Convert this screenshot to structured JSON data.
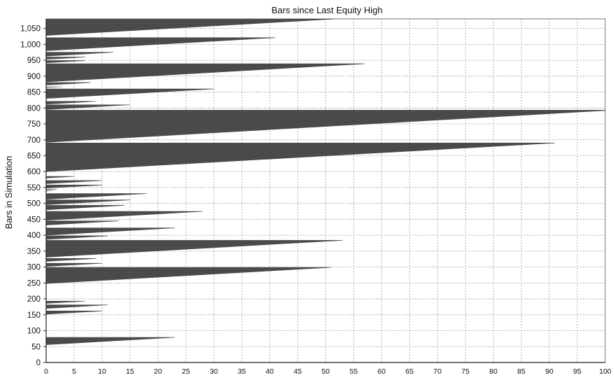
{
  "chart_data": {
    "type": "area",
    "orientation": "horizontal",
    "title": "Bars since Last Equity High",
    "xlabel": "",
    "ylabel": "Bars in Simulation",
    "xlim": [
      0,
      100
    ],
    "ylim": [
      0,
      1080
    ],
    "xticks": [
      "0",
      "5",
      "10",
      "15",
      "20",
      "25",
      "30",
      "35",
      "40",
      "45",
      "50",
      "55",
      "60",
      "65",
      "70",
      "75",
      "80",
      "85",
      "90",
      "95",
      "100"
    ],
    "yticks": [
      "0",
      "50",
      "100",
      "150",
      "200",
      "250",
      "300",
      "350",
      "400",
      "450",
      "500",
      "550",
      "600",
      "650",
      "700",
      "750",
      "800",
      "850",
      "900",
      "950",
      "1,000",
      "1,050"
    ],
    "grid": true,
    "series": [
      {
        "fill_color": "#4a4a4a",
        "note_color_light": "#9a9a9a",
        "drawdowns": [
          {
            "start": 56,
            "end": 79,
            "peak": 23
          },
          {
            "start": 152,
            "end": 162,
            "peak": 10
          },
          {
            "start": 170,
            "end": 181,
            "peak": 11
          },
          {
            "start": 186,
            "end": 193,
            "peak": 7
          },
          {
            "start": 248,
            "end": 299,
            "peak": 51
          },
          {
            "start": 302,
            "end": 312,
            "peak": 10
          },
          {
            "start": 318,
            "end": 327,
            "peak": 9
          },
          {
            "start": 331,
            "end": 384,
            "peak": 53
          },
          {
            "start": 387,
            "end": 398,
            "peak": 11
          },
          {
            "start": 400,
            "end": 423,
            "peak": 23
          },
          {
            "start": 432,
            "end": 445,
            "peak": 13
          },
          {
            "start": 447,
            "end": 475,
            "peak": 28
          },
          {
            "start": 480,
            "end": 494,
            "peak": 14
          },
          {
            "start": 496,
            "end": 511,
            "peak": 15
          },
          {
            "start": 513,
            "end": 531,
            "peak": 18
          },
          {
            "start": 538,
            "end": 545,
            "peak": 2
          },
          {
            "start": 548,
            "end": 558,
            "peak": 10
          },
          {
            "start": 562,
            "end": 572,
            "peak": 10
          },
          {
            "start": 580,
            "end": 585,
            "peak": 5
          },
          {
            "start": 600,
            "end": 690,
            "peak": 91
          },
          {
            "start": 692,
            "end": 793,
            "peak": 101
          },
          {
            "start": 795,
            "end": 810,
            "peak": 15
          },
          {
            "start": 812,
            "end": 821,
            "peak": 9
          },
          {
            "start": 830,
            "end": 860,
            "peak": 30
          },
          {
            "start": 863,
            "end": 867,
            "peak": 3
          },
          {
            "start": 872,
            "end": 880,
            "peak": 8
          },
          {
            "start": 882,
            "end": 939,
            "peak": 57
          },
          {
            "start": 942,
            "end": 949,
            "peak": 7
          },
          {
            "start": 953,
            "end": 960,
            "peak": 7
          },
          {
            "start": 963,
            "end": 975,
            "peak": 12
          },
          {
            "start": 980,
            "end": 1021,
            "peak": 41
          },
          {
            "start": 1028,
            "end": 1093,
            "peak": 65
          }
        ]
      }
    ]
  }
}
